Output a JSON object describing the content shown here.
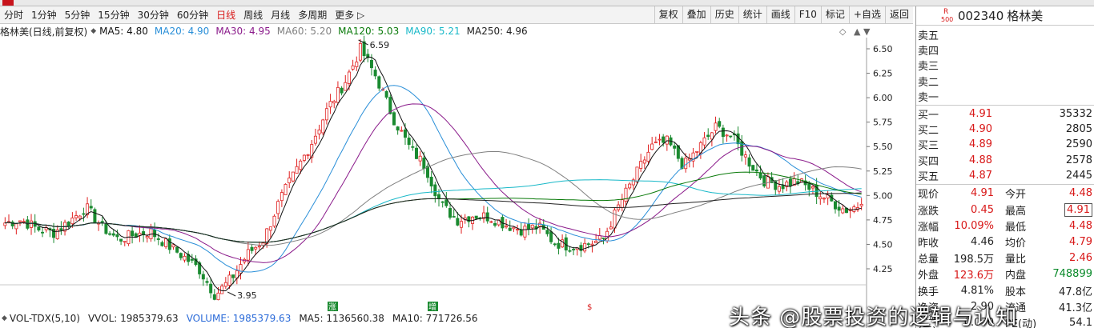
{
  "toolbar": {
    "periods": [
      "分时",
      "1分钟",
      "5分钟",
      "15分钟",
      "30分钟",
      "60分钟",
      "日线",
      "周线",
      "月线",
      "多周期",
      "更多"
    ],
    "active_period": "日线",
    "more_arrow": "▷",
    "tools": [
      "复权",
      "叠加",
      "历史",
      "统计",
      "画线",
      "F10",
      "标记",
      "+自选",
      "返回"
    ]
  },
  "chart": {
    "stock_label": "格林美(日线,前复权)",
    "ma": [
      {
        "label": "MA5: 4.80",
        "color": "#111111"
      },
      {
        "label": "MA20: 4.90",
        "color": "#2a8fd8"
      },
      {
        "label": "MA30: 4.95",
        "color": "#8a1a8a"
      },
      {
        "label": "MA60: 5.20",
        "color": "#808080"
      },
      {
        "label": "MA120: 5.03",
        "color": "#0a7a0a"
      },
      {
        "label": "MA90: 5.21",
        "color": "#18b8c8"
      },
      {
        "label": "MA250: 4.96",
        "color": "#222222"
      }
    ],
    "ctrl_icons": [
      "◇",
      "▲",
      "▼"
    ],
    "price_ticks": [
      "6.50",
      "6.25",
      "6.00",
      "5.75",
      "5.50",
      "5.25",
      "5.00",
      "4.75",
      "4.50",
      "4.25"
    ],
    "high_label": "6.59",
    "low_label": "3.95",
    "markers": [
      "涨",
      "增",
      "$"
    ],
    "volume": {
      "name": "VOL-TDX(5,10)",
      "vvol": "VVOL: 1985379.63",
      "volume": "VOLUME: 1985379.63",
      "ma5": "MA5: 1136560.38",
      "ma10": "MA10: 771726.56"
    }
  },
  "chart_data": {
    "type": "candlestick",
    "title": "格林美(日线,前复权)",
    "ylim": [
      4.25,
      6.6
    ],
    "yticks": [
      4.25,
      4.5,
      4.75,
      5.0,
      5.25,
      5.5,
      5.75,
      6.0,
      6.25,
      6.5
    ],
    "annotations": [
      {
        "label": "6.59",
        "value": 6.59,
        "kind": "period-high"
      },
      {
        "label": "3.95",
        "value": 3.95,
        "kind": "period-low"
      }
    ],
    "close_trend": [
      4.72,
      4.75,
      4.66,
      4.62,
      4.74,
      4.88,
      4.68,
      4.55,
      4.6,
      4.63,
      4.5,
      4.38,
      4.25,
      3.98,
      4.15,
      4.4,
      4.55,
      4.95,
      5.25,
      5.55,
      5.9,
      6.15,
      6.5,
      6.2,
      5.8,
      5.5,
      5.3,
      4.9,
      4.75,
      4.8,
      4.78,
      4.7,
      4.65,
      4.68,
      4.52,
      4.48,
      4.5,
      4.55,
      4.9,
      5.2,
      5.5,
      5.55,
      5.3,
      5.5,
      5.7,
      5.6,
      5.35,
      5.15,
      5.1,
      5.15,
      5.05,
      4.95,
      4.85,
      4.91
    ],
    "series": [
      {
        "name": "MA5",
        "last": 4.8,
        "color": "#111111"
      },
      {
        "name": "MA20",
        "last": 4.9,
        "color": "#2a8fd8"
      },
      {
        "name": "MA30",
        "last": 4.95,
        "color": "#8a1a8a"
      },
      {
        "name": "MA60",
        "last": 5.2,
        "color": "#808080"
      },
      {
        "name": "MA120",
        "last": 5.03,
        "color": "#0a7a0a"
      },
      {
        "name": "MA90",
        "last": 5.21,
        "color": "#18b8c8"
      },
      {
        "name": "MA250",
        "last": 4.96,
        "color": "#222222"
      }
    ],
    "grid": false,
    "legend": "top-left"
  },
  "quote": {
    "badge_top": "R",
    "badge_bottom": "500",
    "code": "002340",
    "name": "格林美",
    "sells": [
      {
        "label": "卖五",
        "price": "",
        "vol": ""
      },
      {
        "label": "卖四",
        "price": "",
        "vol": ""
      },
      {
        "label": "卖三",
        "price": "",
        "vol": ""
      },
      {
        "label": "卖二",
        "price": "",
        "vol": ""
      },
      {
        "label": "卖一",
        "price": "",
        "vol": ""
      }
    ],
    "buys": [
      {
        "label": "买一",
        "price": "4.91",
        "vol": "35332"
      },
      {
        "label": "买二",
        "price": "4.90",
        "vol": "2805"
      },
      {
        "label": "买三",
        "price": "4.89",
        "vol": "2590"
      },
      {
        "label": "买四",
        "price": "4.88",
        "vol": "2578"
      },
      {
        "label": "买五",
        "price": "4.87",
        "vol": "2445"
      }
    ],
    "stats": [
      {
        "l1": "现价",
        "v1": "4.91",
        "c1": "red",
        "l2": "今开",
        "v2": "4.48",
        "c2": "red"
      },
      {
        "l1": "涨跌",
        "v1": "0.45",
        "c1": "red",
        "l2": "最高",
        "v2": "4.91",
        "c2": "red",
        "box2": true
      },
      {
        "l1": "涨幅",
        "v1": "10.09%",
        "c1": "red",
        "l2": "最低",
        "v2": "4.48",
        "c2": "red"
      },
      {
        "l1": "昨收",
        "v1": "4.46",
        "c1": "dark",
        "l2": "均价",
        "v2": "4.79",
        "c2": "red"
      },
      {
        "l1": "总量",
        "v1": "198.5万",
        "c1": "dark",
        "l2": "量比",
        "v2": "2.46",
        "c2": "red"
      },
      {
        "l1": "外盘",
        "v1": "123.6万",
        "c1": "red",
        "l2": "内盘",
        "v2": "748899",
        "c2": "green"
      },
      {
        "l1": "换手",
        "v1": "4.81%",
        "c1": "dark",
        "l2": "股本",
        "v2": "47.8亿",
        "c2": "dark"
      },
      {
        "l1": "净资",
        "v1": "2.90",
        "c1": "dark",
        "l2": "流通",
        "v2": "41.3亿",
        "c2": "dark"
      },
      {
        "l1": "收益(三)",
        "v1": "0.070",
        "c1": "dark",
        "l2": "PE(动)",
        "v2": "54.1",
        "c2": "dark"
      }
    ]
  },
  "watermark": "头条 @股票投资的逻辑与认知"
}
